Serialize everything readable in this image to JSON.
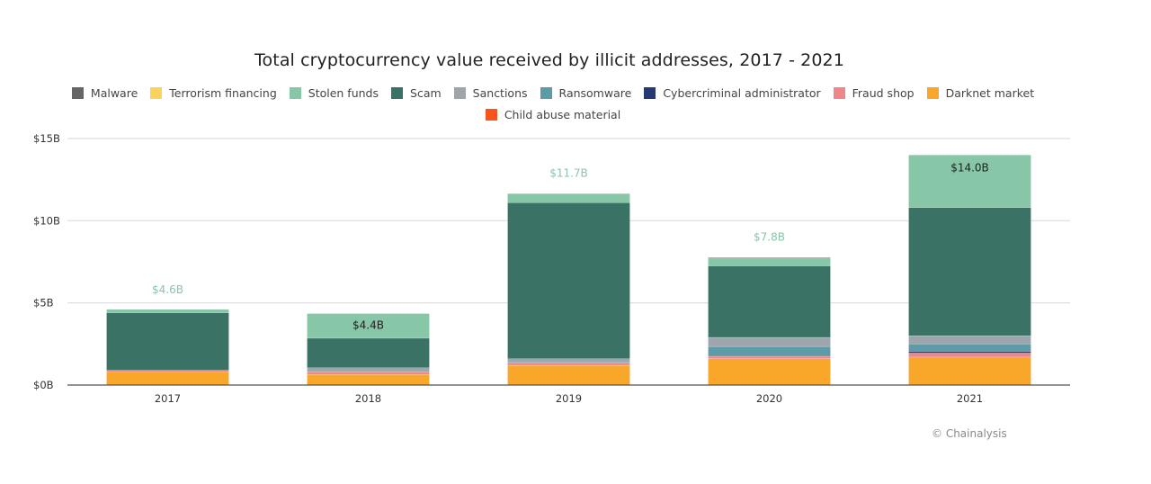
{
  "chart_data": {
    "type": "bar",
    "stacked": true,
    "title": "Total cryptocurrency value received by illicit addresses, 2017 - 2021",
    "xlabel": "",
    "ylabel": "",
    "ylim": [
      0,
      15
    ],
    "y_ticks": [
      0,
      5,
      10,
      15
    ],
    "y_tick_labels": [
      "$0B",
      "$5B",
      "$10B",
      "$15B"
    ],
    "grid": true,
    "legend_position": "top-center",
    "categories": [
      "2017",
      "2018",
      "2019",
      "2020",
      "2021"
    ],
    "series": [
      {
        "name": "Darknet market",
        "color": "#F9A72B",
        "values": [
          0.8,
          0.65,
          1.2,
          1.6,
          1.7
        ]
      },
      {
        "name": "Child abuse material",
        "color": "#F5561F",
        "values": [
          0.0,
          0.0,
          0.0,
          0.0,
          0.0
        ]
      },
      {
        "name": "Fraud shop",
        "color": "#EF878A",
        "values": [
          0.1,
          0.15,
          0.15,
          0.15,
          0.25
        ]
      },
      {
        "name": "Cybercriminal administrator",
        "color": "#253A73",
        "values": [
          0.0,
          0.0,
          0.0,
          0.0,
          0.1
        ]
      },
      {
        "name": "Ransomware",
        "color": "#5E9BA8",
        "values": [
          0.0,
          0.0,
          0.05,
          0.6,
          0.45
        ]
      },
      {
        "name": "Sanctions",
        "color": "#9EA5AD",
        "values": [
          0.0,
          0.25,
          0.2,
          0.55,
          0.5
        ]
      },
      {
        "name": "Scam",
        "color": "#3A7365",
        "values": [
          3.5,
          1.8,
          9.5,
          4.35,
          7.8
        ]
      },
      {
        "name": "Stolen funds",
        "color": "#88C6A8",
        "values": [
          0.2,
          1.5,
          0.55,
          0.45,
          3.2
        ]
      },
      {
        "name": "Terrorism financing",
        "color": "#FCD25F",
        "values": [
          0.0,
          0.0,
          0.0,
          0.0,
          0.0
        ]
      },
      {
        "name": "Malware",
        "color": "#666666",
        "values": [
          0.0,
          0.0,
          0.0,
          0.05,
          0.0
        ]
      }
    ],
    "totals": [
      4.6,
      4.4,
      11.7,
      7.8,
      14.0
    ],
    "total_labels": [
      "$4.6B",
      "$4.4B",
      "$11.7B",
      "$7.8B",
      "$14.0B"
    ],
    "total_label_inside": [
      false,
      true,
      false,
      false,
      true
    ],
    "legend_order": [
      "Malware",
      "Terrorism financing",
      "Stolen funds",
      "Scam",
      "Sanctions",
      "Ransomware",
      "Cybercriminal administrator",
      "Fraud shop",
      "Darknet market",
      "Child abuse material"
    ]
  },
  "legend": [
    {
      "label": "Malware",
      "color": "#666666"
    },
    {
      "label": "Terrorism financing",
      "color": "#FCD25F"
    },
    {
      "label": "Stolen funds",
      "color": "#88C6A8"
    },
    {
      "label": "Scam",
      "color": "#3A7365"
    },
    {
      "label": "Sanctions",
      "color": "#9EA5AD"
    },
    {
      "label": "Ransomware",
      "color": "#5E9BA8"
    },
    {
      "label": "Cybercriminal administrator",
      "color": "#253A73"
    },
    {
      "label": "Fraud shop",
      "color": "#EF878A"
    },
    {
      "label": "Darknet market",
      "color": "#F9A72B"
    },
    {
      "label": "Child abuse material",
      "color": "#F5561F"
    }
  ],
  "colors": {
    "outside_label": "#88C6A8",
    "inside_label": "#222222",
    "grid": "#dddddd",
    "axis": "#555555"
  },
  "credit": "© Chainalysis"
}
